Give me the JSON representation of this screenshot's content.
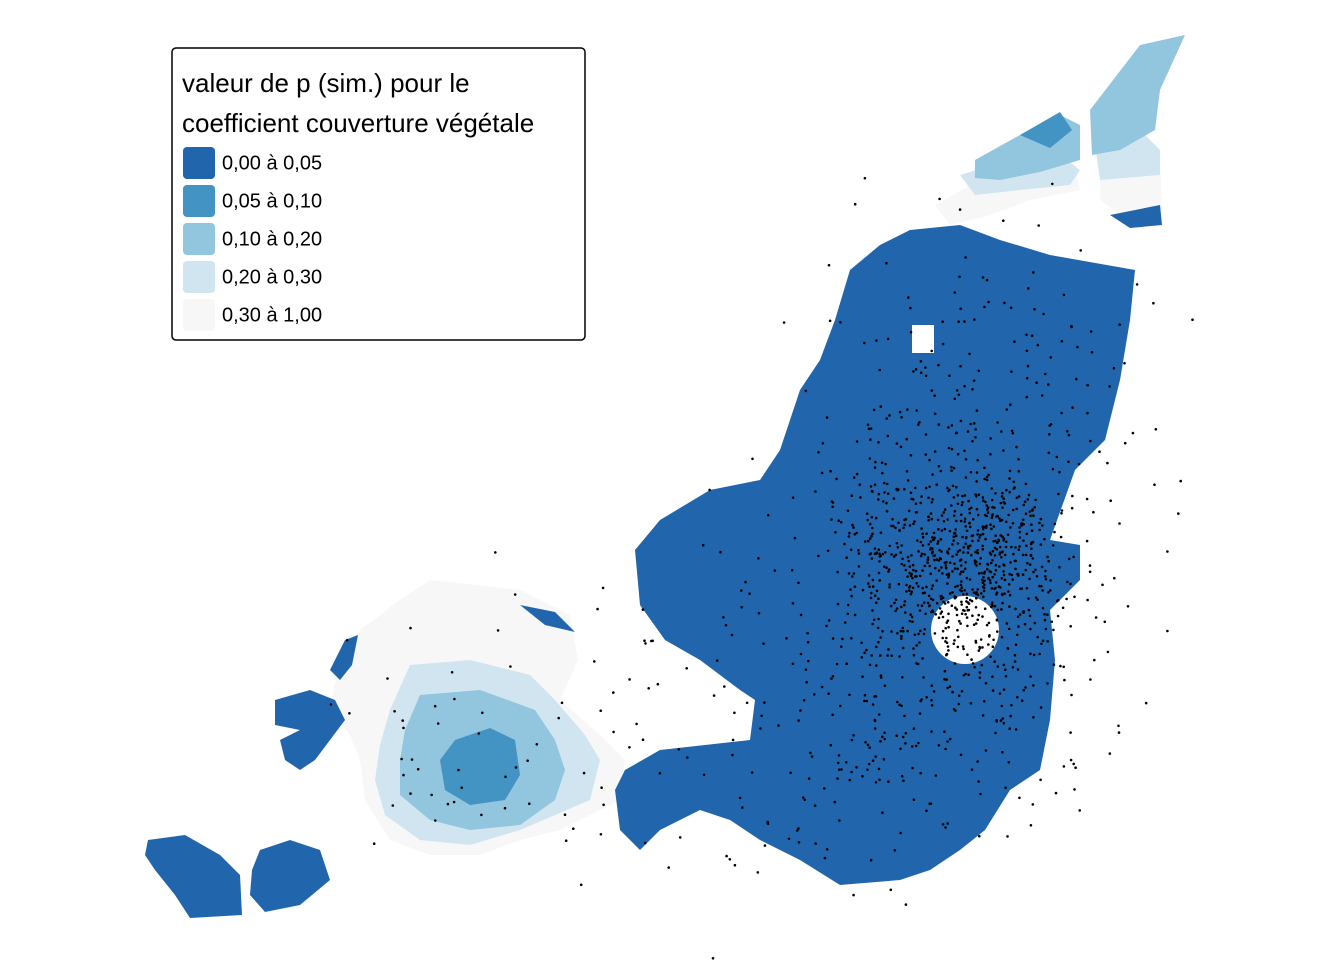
{
  "legend": {
    "title_lines": [
      "valeur de p (sim.) pour le",
      "coefficient couverture végétale"
    ],
    "items": [
      {
        "label": "0,00 à 0,05",
        "color": "#2166ac"
      },
      {
        "label": "0,05 à 0,10",
        "color": "#4393c3"
      },
      {
        "label": "0,10 à 0,20",
        "color": "#92c5de"
      },
      {
        "label": "0,20 à 0,30",
        "color": "#d1e5f0"
      },
      {
        "label": "0,30 à 1,00",
        "color": "#f7f7f7"
      }
    ]
  }
}
